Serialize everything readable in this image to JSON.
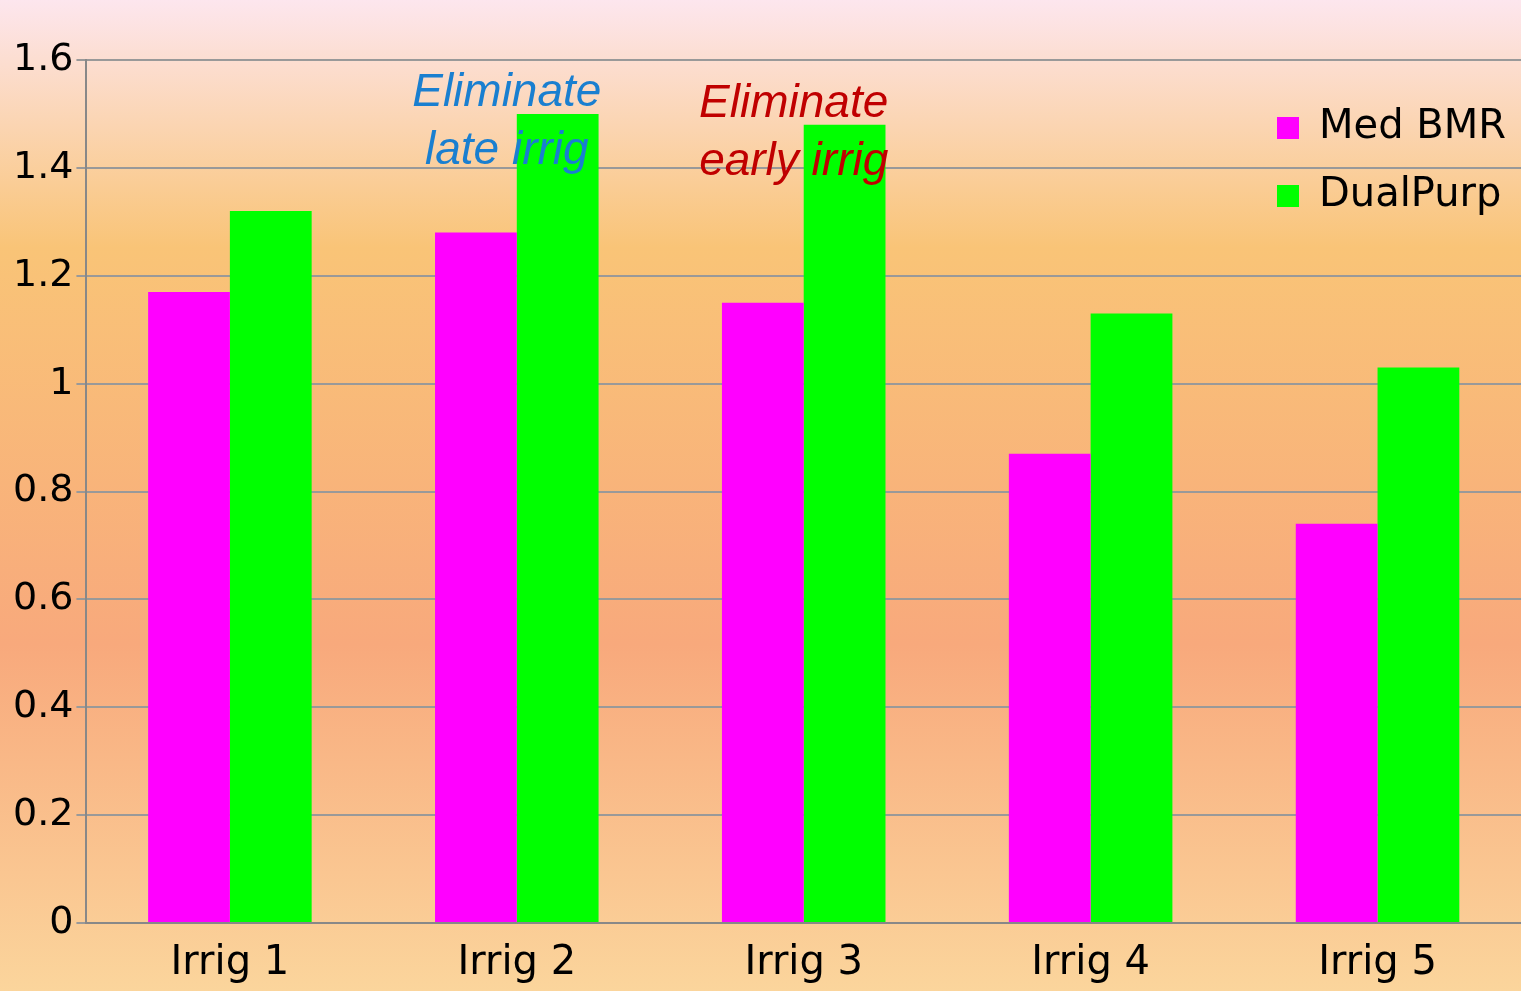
{
  "chart_data": {
    "type": "bar",
    "categories": [
      "Irrig 1",
      "Irrig 2",
      "Irrig 3",
      "Irrig 4",
      "Irrig 5"
    ],
    "series": [
      {
        "name": "Med BMR",
        "color": "#ff00ff",
        "values": [
          1.17,
          1.28,
          1.15,
          0.87,
          0.74
        ]
      },
      {
        "name": "DualPurp",
        "color": "#00ff00",
        "values": [
          1.32,
          1.5,
          1.48,
          1.13,
          1.03
        ]
      }
    ],
    "ylim": [
      0,
      1.6
    ],
    "yticks": [
      0,
      0.2,
      0.4,
      0.6,
      0.8,
      1,
      1.2,
      1.4,
      1.6
    ],
    "grid": "y",
    "legend": "top right",
    "annotations": [
      {
        "text": "Eliminate late irrig",
        "x": "Irrig 2",
        "y": 1.5
      },
      {
        "text": "Eliminate early irrig",
        "x": "Irrig 3",
        "y": 1.48
      }
    ]
  }
}
